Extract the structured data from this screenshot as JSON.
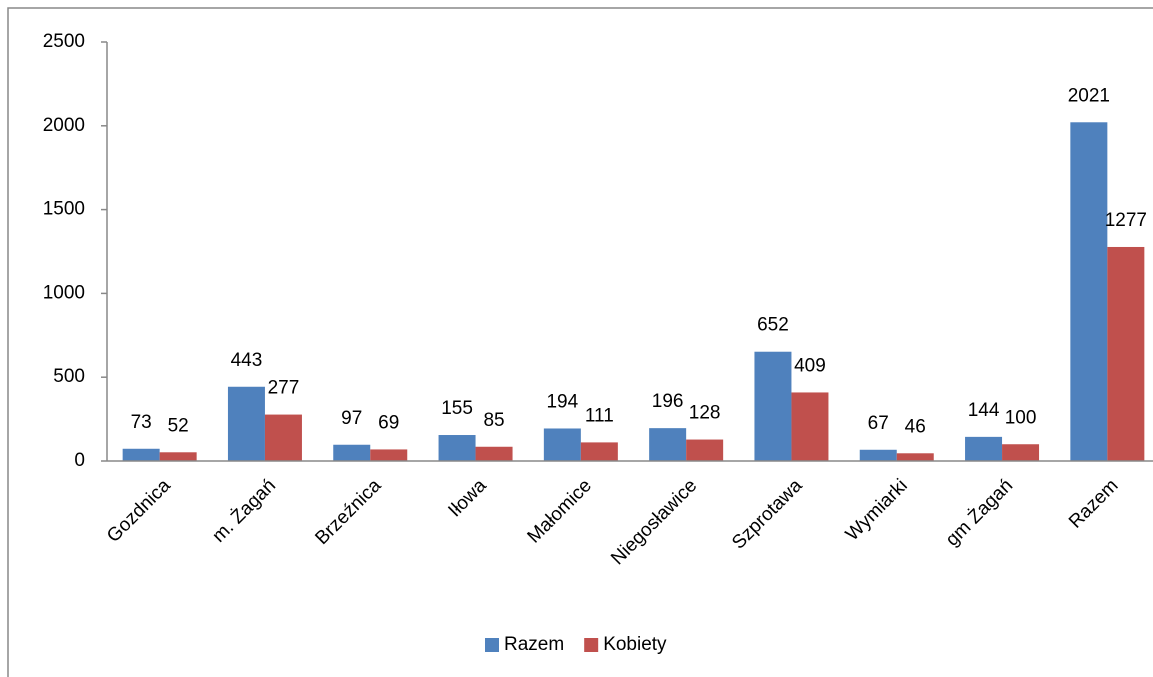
{
  "chart_data": {
    "type": "bar",
    "categories": [
      "Gozdnica",
      "m. Żagań",
      "Brzeźnica",
      "Iłowa",
      "Małomice",
      "Niegosławice",
      "Szprotawa",
      "Wymiarki",
      "gm Żagań",
      "Razem"
    ],
    "series": [
      {
        "name": "Razem",
        "color": "#4f81bd",
        "values": [
          73,
          443,
          97,
          155,
          194,
          196,
          652,
          67,
          144,
          2021
        ]
      },
      {
        "name": "Kobiety",
        "color": "#c0504d",
        "values": [
          52,
          277,
          69,
          85,
          111,
          128,
          409,
          46,
          100,
          1277
        ]
      }
    ],
    "ylim": [
      0,
      2500
    ],
    "yticks": [
      0,
      500,
      1000,
      1500,
      2000,
      2500
    ],
    "grid": false,
    "legend": "bottom"
  }
}
